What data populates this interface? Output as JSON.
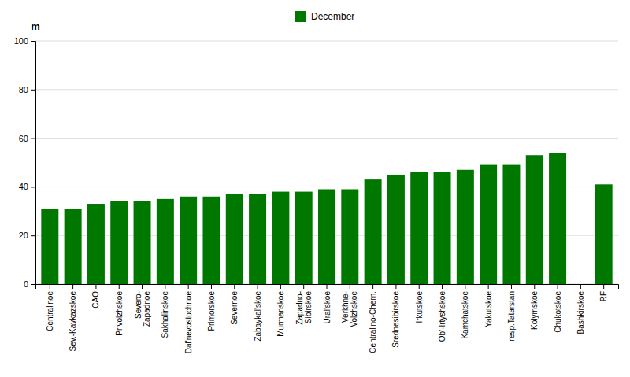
{
  "chart_data": {
    "type": "bar",
    "categories": [
      "Central'noe",
      "Sev.-Kavkazskoe",
      "CAO",
      "Privolzhskoe",
      "Severo-\nZapadnoe",
      "Sakhalinskoe",
      "Dal'nevostochnoe",
      "Primorskoe",
      "Severnoe",
      "Zabaykal'skoe",
      "Murmanskoe",
      "Zapadno-\nSibirskoe",
      "Ural'skoe",
      "Verkhne-\nVolzhskoe",
      "Central'no-Chern.",
      "Srednesibirskoe",
      "Irkutskoe",
      "Ob'-Irtyshskoe",
      "Kamchatskoe",
      "Yakutskoe",
      "resp.Tatarstan",
      "Kolymskoe",
      "Chukotskoe",
      "Bashkirskoe",
      "RF"
    ],
    "series": [
      {
        "name": "December",
        "color": "#007800",
        "values": [
          31,
          31,
          33,
          34,
          34,
          35,
          36,
          36,
          37,
          37,
          38,
          38,
          39,
          39,
          43,
          45,
          46,
          46,
          47,
          49,
          49,
          53,
          54,
          0,
          41
        ]
      }
    ],
    "y_label": "m",
    "ylim": [
      0,
      100
    ],
    "yticks": [
      0,
      20,
      40,
      60,
      80,
      100
    ],
    "grid": true,
    "legend": "top"
  }
}
